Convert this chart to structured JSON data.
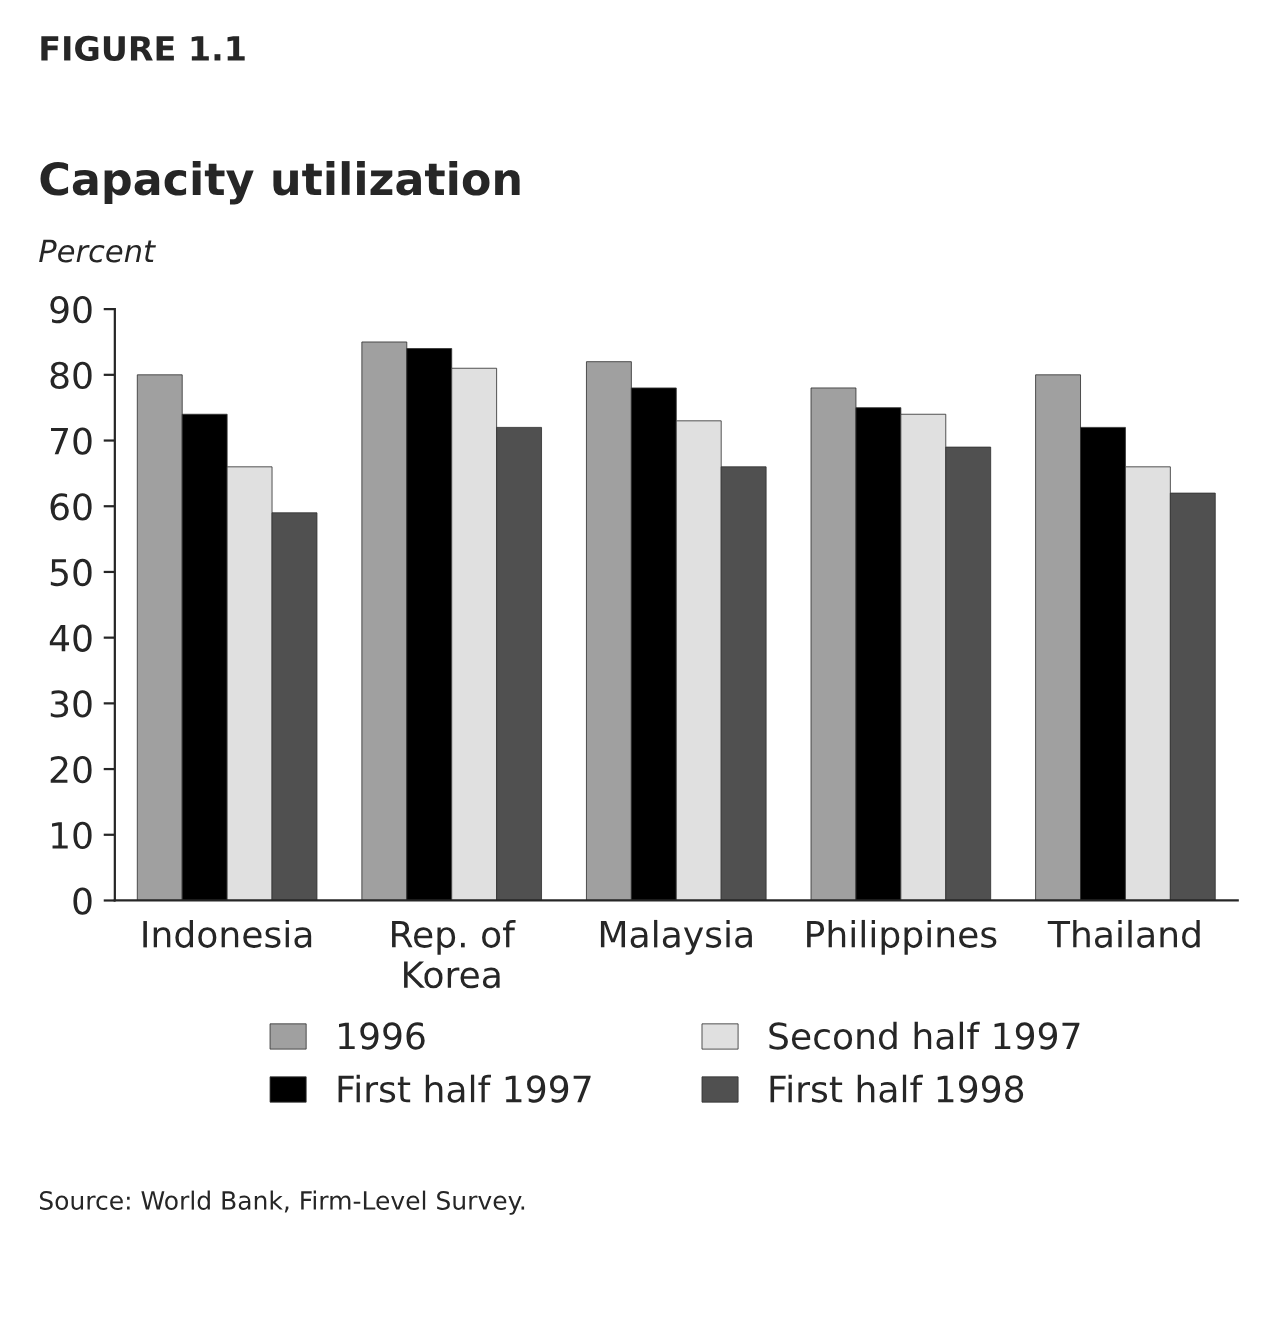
{
  "chart_data": {
    "type": "bar",
    "title": "Capacity utilization",
    "ylabel": "Percent",
    "annotations": [
      "FIGURE 1.1",
      "Source: World Bank, Firm-Level Survey."
    ],
    "categories": [
      "Indonesia",
      "Rep. of\nKorea",
      "Malaysia",
      "Philippines",
      "Thailand"
    ],
    "series": [
      {
        "name": "1996",
        "color": "#a0a0a0",
        "values": [
          80,
          85,
          82,
          78,
          80
        ]
      },
      {
        "name": "First half 1997",
        "color": "#000000",
        "values": [
          74,
          84,
          78,
          75,
          72
        ]
      },
      {
        "name": "Second half 1997",
        "color": "#e0e0e0",
        "values": [
          66,
          81,
          73,
          74,
          66
        ]
      },
      {
        "name": "First half 1998",
        "color": "#505050",
        "values": [
          59,
          72,
          66,
          69,
          62
        ]
      }
    ],
    "ylim": [
      0,
      90
    ],
    "yticks": [
      0,
      10,
      20,
      30,
      40,
      50,
      60,
      70,
      80,
      90
    ],
    "grid": false,
    "legend": "bottom"
  }
}
